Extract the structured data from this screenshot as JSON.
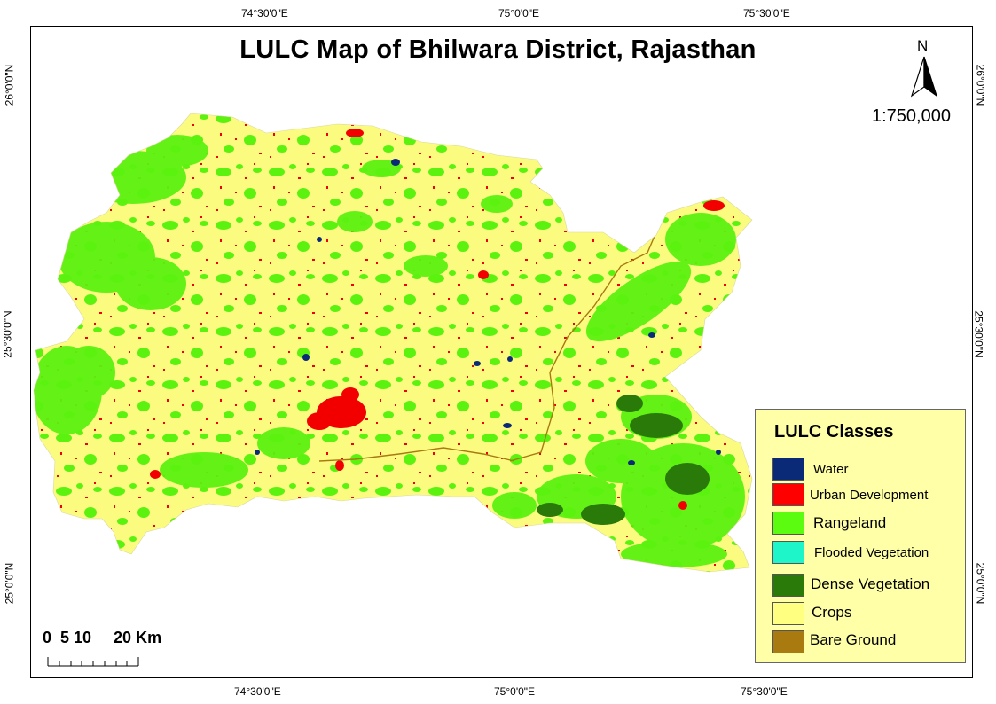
{
  "title": "LULC Map of Bhilwara District, Rajasthan",
  "north_label": "N",
  "scale_ratio": "1:750,000",
  "scalebar_label": "0  5 10     20 Km",
  "coords": {
    "top": [
      "74°30'0\"E",
      "75°0'0\"E",
      "75°30'0\"E"
    ],
    "bottom": [
      "74°30'0\"E",
      "75°0'0\"E",
      "75°30'0\"E"
    ],
    "left": [
      "26°0'0\"N",
      "25°30'0\"N",
      "25°0'0\"N"
    ],
    "right": [
      "26°0'0\"N",
      "25°30'0\"N",
      "25°0'0\"N"
    ]
  },
  "legend": {
    "title": "LULC Classes",
    "items": [
      {
        "label": "Water",
        "color": "#0a2a78"
      },
      {
        "label": "Urban Development",
        "color": "#ff0000"
      },
      {
        "label": "Rangeland",
        "color": "#5cfc10"
      },
      {
        "label": "Flooded Vegetation",
        "color": "#1ef5c8"
      },
      {
        "label": "Dense Vegetation",
        "color": "#2a7a0a"
      },
      {
        "label": "Crops",
        "color": "#ffff80"
      },
      {
        "label": "Bare Ground",
        "color": "#a87a10"
      }
    ]
  },
  "colors": {
    "crops": "#fbfb80",
    "rangeland": "#5cf210",
    "urban": "#f20000",
    "water": "#0a2a78",
    "dense": "#2a7a0a",
    "bare": "#a87a10"
  }
}
